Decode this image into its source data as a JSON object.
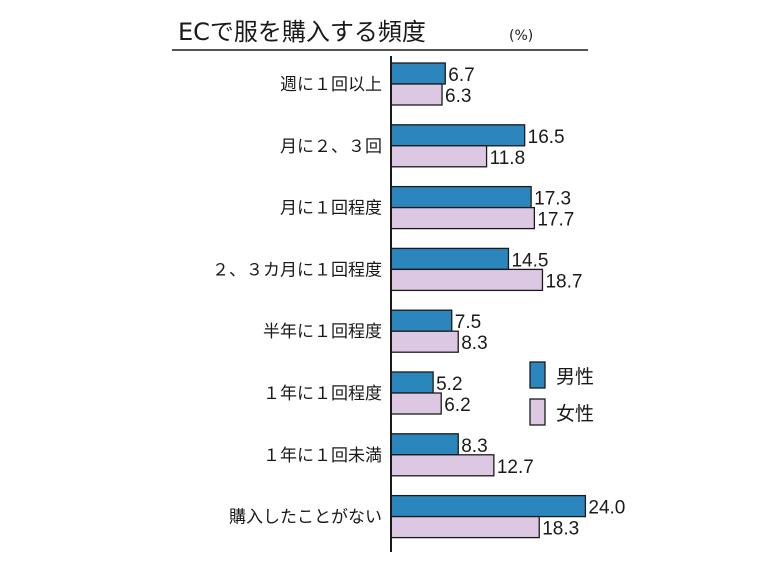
{
  "chart_data": {
    "type": "bar",
    "orientation": "horizontal",
    "title": "ECで服を購入する頻度",
    "unit": "(%)",
    "categories": [
      "週に１回以上",
      "月に２、３回",
      "月に１回程度",
      "２、３カ月に１回程度",
      "半年に１回程度",
      "１年に１回程度",
      "１年に１回未満",
      "購入したことがない"
    ],
    "series": [
      {
        "name": "男性",
        "color": "#2a86bd",
        "values": [
          6.7,
          16.5,
          17.3,
          14.5,
          7.5,
          5.2,
          8.3,
          24.0
        ],
        "labels": [
          "6.7",
          "16.5",
          "17.3",
          "14.5",
          "7.5",
          "5.2",
          "8.3",
          "24.0"
        ]
      },
      {
        "name": "女性",
        "color": "#dcc8e2",
        "values": [
          6.3,
          11.8,
          17.7,
          18.7,
          8.3,
          6.2,
          12.7,
          18.3
        ],
        "labels": [
          "6.3",
          "11.8",
          "17.7",
          "18.7",
          "8.3",
          "6.2",
          "12.7",
          "18.3"
        ]
      }
    ],
    "xlim": [
      0,
      30
    ],
    "grid": false,
    "legend": "right"
  }
}
